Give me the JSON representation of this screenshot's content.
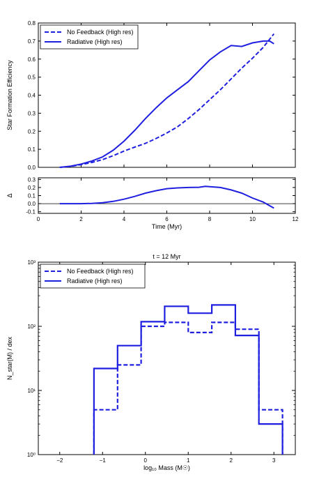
{
  "chart_data": [
    {
      "type": "line",
      "xlabel": "",
      "ylabel": "Star Formation Efficiency",
      "xlim": [
        0,
        12
      ],
      "ylim": [
        0,
        0.8
      ],
      "xticks": [
        "0",
        "2",
        "4",
        "6",
        "8",
        "10",
        "12"
      ],
      "yticks": [
        "0.0",
        "0.1",
        "0.2",
        "0.3",
        "0.4",
        "0.5",
        "0.6",
        "0.7",
        "0.8"
      ],
      "legend": "top-left",
      "colors": {
        "series": "#1f1fe0"
      },
      "series": [
        {
          "name": "No Feedback (High res)",
          "style": "dashed",
          "x": [
            1.0,
            1.5,
            2.0,
            2.5,
            3.0,
            3.5,
            4.0,
            4.5,
            5.0,
            5.5,
            6.0,
            6.5,
            7.0,
            7.5,
            8.0,
            8.5,
            9.0,
            9.5,
            10.0,
            10.5,
            11.0
          ],
          "y": [
            0.0,
            0.005,
            0.015,
            0.027,
            0.043,
            0.065,
            0.09,
            0.112,
            0.133,
            0.16,
            0.19,
            0.225,
            0.27,
            0.32,
            0.375,
            0.43,
            0.49,
            0.55,
            0.605,
            0.665,
            0.74
          ]
        },
        {
          "name": "Radiative (High res)",
          "style": "solid",
          "x": [
            1.0,
            1.5,
            2.0,
            2.5,
            3.0,
            3.5,
            4.0,
            4.5,
            5.0,
            5.5,
            6.0,
            6.5,
            7.0,
            7.5,
            8.0,
            8.5,
            9.0,
            9.5,
            10.0,
            10.5,
            10.8,
            11.0
          ],
          "y": [
            0.0,
            0.006,
            0.018,
            0.035,
            0.058,
            0.095,
            0.145,
            0.205,
            0.27,
            0.33,
            0.385,
            0.43,
            0.475,
            0.535,
            0.595,
            0.64,
            0.675,
            0.67,
            0.69,
            0.7,
            0.7,
            0.685
          ]
        }
      ]
    },
    {
      "type": "line",
      "xlabel": "Time (Myr)",
      "ylabel": "Δ",
      "xlim": [
        0,
        12
      ],
      "ylim": [
        -0.12,
        0.32
      ],
      "xticks": [
        "0",
        "2",
        "4",
        "6",
        "8",
        "10",
        "12"
      ],
      "yticks": [
        "-0.1",
        "0.0",
        "0.1",
        "0.2",
        "0.3"
      ],
      "series": [
        {
          "name": "",
          "style": "solid",
          "x": [
            1.0,
            2.0,
            2.5,
            3.0,
            3.5,
            4.0,
            4.5,
            5.0,
            5.5,
            6.0,
            6.5,
            7.0,
            7.5,
            7.8,
            8.0,
            8.5,
            9.0,
            9.5,
            10.0,
            10.5,
            11.0
          ],
          "y": [
            0.0,
            0.0,
            0.003,
            0.012,
            0.028,
            0.055,
            0.09,
            0.13,
            0.16,
            0.185,
            0.195,
            0.2,
            0.203,
            0.215,
            0.21,
            0.2,
            0.17,
            0.13,
            0.07,
            0.02,
            -0.055
          ]
        }
      ]
    },
    {
      "type": "step",
      "title": "t = 12 Myr",
      "xlabel": "log₁₀ Mass (M☉)",
      "ylabel": "N_star(M) / dex",
      "xlim": [
        -2.5,
        3.5
      ],
      "ylim_log10": [
        0,
        3
      ],
      "log_y": true,
      "xticks": [
        "−2",
        "−1",
        "0",
        "1",
        "2",
        "3"
      ],
      "yticks": [
        "10⁰",
        "10¹",
        "10²",
        "10³"
      ],
      "legend": "top-left",
      "bin_edges": [
        -1.2,
        -0.65,
        -0.1,
        0.45,
        1.0,
        1.55,
        2.1,
        2.65,
        3.2
      ],
      "series": [
        {
          "name": "No Feedback (High res)",
          "style": "dashed",
          "values": [
            5,
            25,
            100,
            115,
            80,
            115,
            90,
            5
          ]
        },
        {
          "name": "Radiative (High res)",
          "style": "solid",
          "values": [
            22,
            50,
            118,
            205,
            160,
            215,
            72,
            3
          ]
        }
      ]
    }
  ]
}
